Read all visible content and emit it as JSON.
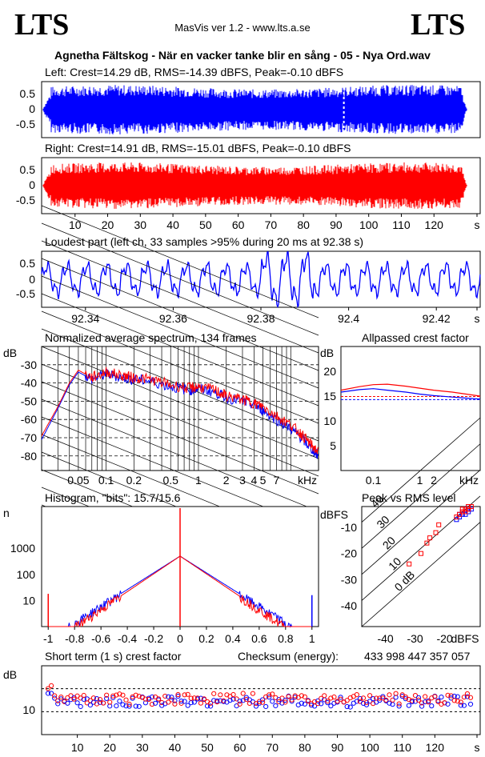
{
  "header": {
    "logo_left": "LTS",
    "logo_right": "LTS",
    "app_version": "MasVis ver 1.2 - www.lts.a.se",
    "track_title": "Agnetha Fältskog - När en vacker tanke blir en sång - 05 - Nya Ord.wav"
  },
  "chart_data": [
    {
      "id": "left-waveform",
      "type": "line",
      "title": "Left: Crest=14.29 dB, RMS=-14.39 dBFS, Peak=-0.10 dBFS",
      "color": "#0000ff",
      "yticks": [
        "0.5",
        "0",
        "-0.5"
      ],
      "ylim": [
        -1,
        1
      ],
      "xlim": [
        0,
        130
      ],
      "marker_at_s": 92.38,
      "crest_db": 14.29,
      "rms_dbfs": -14.39,
      "peak_dbfs": -0.1
    },
    {
      "id": "right-waveform",
      "type": "line",
      "title": "Right: Crest=14.91 dB, RMS=-15.01 dBFS, Peak=-0.10 dBFS",
      "color": "#ff0000",
      "yticks": [
        "0.5",
        "0",
        "-0.5"
      ],
      "ylim": [
        -1,
        1
      ],
      "xlim": [
        0,
        130
      ],
      "xticks": [
        "10",
        "20",
        "30",
        "40",
        "50",
        "60",
        "70",
        "80",
        "90",
        "100",
        "110",
        "120",
        "s"
      ],
      "crest_db": 14.91,
      "rms_dbfs": -15.01,
      "peak_dbfs": -0.1
    },
    {
      "id": "loudest-part",
      "type": "line",
      "title": "Loudest part (left  ch, 33 samples >95% during 20 ms at 92.38 s)",
      "color": "#0000ff",
      "yticks": [
        "0.5",
        "0",
        "-0.5"
      ],
      "xlim": [
        92.33,
        92.43
      ],
      "xticks": [
        "92.34",
        "92.36",
        "92.38",
        "92.4",
        "92.42",
        "s"
      ]
    },
    {
      "id": "avg-spectrum",
      "type": "line",
      "title": "Normalized average spectrum, 134 frames",
      "ylabel": "dB",
      "yticks": [
        "-30",
        "-40",
        "-50",
        "-60",
        "-70",
        "-80"
      ],
      "xticks": [
        "0.05",
        "0.1",
        "0.2",
        "0.5",
        "1",
        "2",
        "3",
        "4",
        "5",
        "7",
        "kHz"
      ],
      "ylim": [
        -88,
        -20
      ],
      "series": [
        {
          "color": "#0000ff",
          "points": [
            [
              0.02,
              -71
            ],
            [
              0.03,
              -54
            ],
            [
              0.04,
              -41
            ],
            [
              0.05,
              -34
            ],
            [
              0.07,
              -38
            ],
            [
              0.1,
              -35
            ],
            [
              0.15,
              -37
            ],
            [
              0.2,
              -38
            ],
            [
              0.3,
              -39
            ],
            [
              0.5,
              -42
            ],
            [
              0.8,
              -44
            ],
            [
              1,
              -43
            ],
            [
              1.5,
              -45
            ],
            [
              2,
              -48
            ],
            [
              3,
              -50
            ],
            [
              4,
              -52
            ],
            [
              5,
              -55
            ],
            [
              7,
              -60
            ],
            [
              10,
              -65
            ],
            [
              13,
              -70
            ],
            [
              16,
              -75
            ],
            [
              20,
              -80
            ]
          ]
        },
        {
          "color": "#ff0000",
          "points": [
            [
              0.02,
              -69
            ],
            [
              0.03,
              -53
            ],
            [
              0.04,
              -40
            ],
            [
              0.05,
              -33
            ],
            [
              0.07,
              -37
            ],
            [
              0.1,
              -34
            ],
            [
              0.15,
              -36
            ],
            [
              0.2,
              -37
            ],
            [
              0.3,
              -38
            ],
            [
              0.5,
              -41
            ],
            [
              0.8,
              -43
            ],
            [
              1,
              -42
            ],
            [
              1.5,
              -44
            ],
            [
              2,
              -47
            ],
            [
              3,
              -49
            ],
            [
              4,
              -51
            ],
            [
              5,
              -53
            ],
            [
              7,
              -58
            ],
            [
              10,
              -63
            ],
            [
              13,
              -68
            ],
            [
              16,
              -73
            ],
            [
              20,
              -78
            ]
          ]
        }
      ]
    },
    {
      "id": "allpassed-crest",
      "type": "line",
      "title": "Allpassed crest factor",
      "ylabel": "dB",
      "yticks": [
        "20",
        "15",
        "10",
        "5"
      ],
      "xticks": [
        "0.1",
        "1",
        "2",
        "kHz"
      ],
      "ylim": [
        0,
        25
      ],
      "series": [
        {
          "color": "#0000ff",
          "points": [
            [
              0.02,
              15.8
            ],
            [
              0.05,
              16.3
            ],
            [
              0.1,
              16.5
            ],
            [
              0.2,
              16.2
            ],
            [
              0.5,
              15.8
            ],
            [
              1,
              15.4
            ],
            [
              2,
              15.1
            ],
            [
              5,
              14.8
            ],
            [
              10,
              14.6
            ],
            [
              20,
              14.4
            ]
          ]
        },
        {
          "color": "#ff0000",
          "points": [
            [
              0.02,
              16.2
            ],
            [
              0.05,
              16.9
            ],
            [
              0.1,
              17.3
            ],
            [
              0.2,
              17.4
            ],
            [
              0.5,
              17.0
            ],
            [
              1,
              16.6
            ],
            [
              2,
              16.2
            ],
            [
              5,
              15.8
            ],
            [
              10,
              15.4
            ],
            [
              20,
              15.0
            ]
          ]
        }
      ],
      "reference_lines": [
        {
          "color": "#0000ff",
          "value": 14.29
        },
        {
          "color": "#ff0000",
          "value": 14.91
        }
      ]
    },
    {
      "id": "histogram",
      "type": "line",
      "title": "Histogram, \"bits\": 15.7/15.6",
      "ylabel": "n",
      "yticks": [
        "1000",
        "100",
        "10"
      ],
      "xticks": [
        "-1",
        "-0.8",
        "-0.6",
        "-0.4",
        "-0.2",
        "0",
        "0.2",
        "0.4",
        "0.6",
        "0.8",
        "1"
      ],
      "xlim": [
        -1.05,
        1.05
      ],
      "bits_left": 15.7,
      "bits_right": 15.6
    },
    {
      "id": "peak-vs-rms",
      "type": "scatter",
      "title": "Peak vs RMS level",
      "ylabel": "dBFS",
      "xlabel": "dBFS",
      "yticks": [
        "-10",
        "-20",
        "-30",
        "-40"
      ],
      "xticks": [
        "-40",
        "-30",
        "-20"
      ],
      "diagonal_labels": [
        "40",
        "30",
        "20",
        "10",
        "0 dB"
      ],
      "xlim": [
        -48,
        -8
      ],
      "ylim": [
        -48,
        -2
      ],
      "series": [
        {
          "color": "#0000ff",
          "points": [
            [
              -14,
              -5
            ],
            [
              -13,
              -4
            ],
            [
              -12,
              -4
            ],
            [
              -15,
              -6
            ],
            [
              -13,
              -3
            ],
            [
              -12,
              -2
            ],
            [
              -16,
              -7
            ],
            [
              -11,
              -3
            ],
            [
              -14,
              -4
            ],
            [
              -13,
              -5
            ],
            [
              -15,
              -5
            ],
            [
              -12,
              -3
            ]
          ]
        },
        {
          "color": "#ff0000",
          "points": [
            [
              -14,
              -4
            ],
            [
              -13,
              -3
            ],
            [
              -12,
              -3
            ],
            [
              -15,
              -5
            ],
            [
              -16,
              -6
            ],
            [
              -13,
              -4
            ],
            [
              -12,
              -2
            ],
            [
              -11,
              -2
            ],
            [
              -14,
              -3
            ],
            [
              -25,
              -14
            ],
            [
              -23,
              -12
            ],
            [
              -22,
              -9
            ],
            [
              -32,
              -24
            ],
            [
              -28,
              -20
            ],
            [
              -26,
              -16
            ]
          ]
        }
      ]
    },
    {
      "id": "short-term-crest",
      "type": "scatter",
      "title": "Short term (1 s) crest factor",
      "checksum_label": "Checksum (energy):",
      "checksum_value": "433 998 447 357 057",
      "ylabel": "dB",
      "yticks": [
        "10"
      ],
      "xticks": [
        "10",
        "20",
        "30",
        "40",
        "50",
        "60",
        "70",
        "80",
        "90",
        "100",
        "110",
        "120",
        "s"
      ],
      "xlim": [
        0,
        131
      ],
      "ylim": [
        5,
        20
      ]
    }
  ]
}
